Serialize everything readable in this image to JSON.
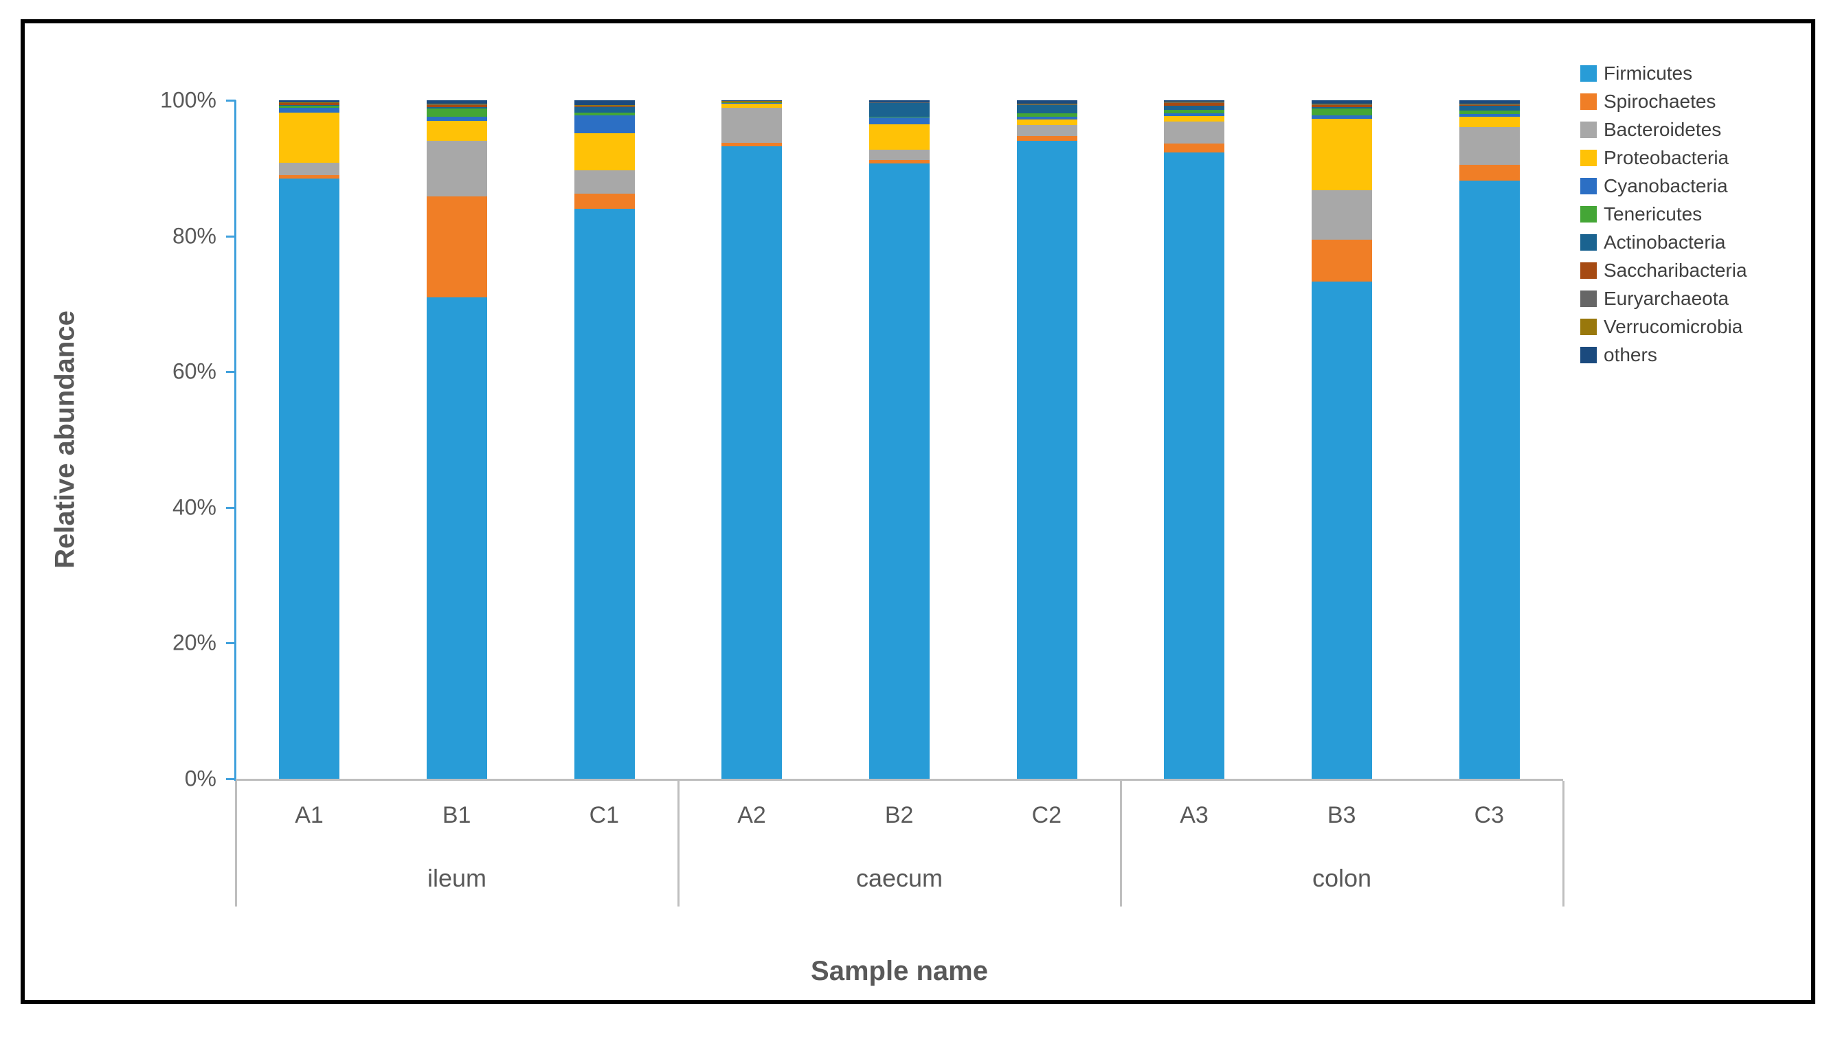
{
  "figure": {
    "x_axis_title": "Sample name",
    "y_axis_title": "Relative abundance"
  },
  "chart_data": {
    "type": "bar",
    "stacked": true,
    "orientation": "vertical",
    "title": "",
    "xlabel": "Sample name",
    "ylabel": "Relative abundance",
    "ylim": [
      0,
      100
    ],
    "y_ticks": [
      "0%",
      "20%",
      "40%",
      "60%",
      "80%",
      "100%"
    ],
    "grid": false,
    "legend_position": "right",
    "categories": [
      "A1",
      "B1",
      "C1",
      "A2",
      "B2",
      "C2",
      "A3",
      "B3",
      "C3"
    ],
    "groups": [
      {
        "label": "ileum",
        "span": 3
      },
      {
        "label": "caecum",
        "span": 3
      },
      {
        "label": "colon",
        "span": 3
      }
    ],
    "axis_colors": {
      "y_axis_line": "#3FA0DC",
      "x_axis_line": "#BFBFBF",
      "tick_label": "#595959"
    },
    "series": [
      {
        "name": "Firmicutes",
        "color": "#289CD7",
        "values": [
          88.5,
          71.0,
          84.0,
          93.2,
          90.7,
          94.0,
          92.3,
          73.3,
          88.2
        ]
      },
      {
        "name": "Spirochaetes",
        "color": "#F07E26",
        "values": [
          0.5,
          14.8,
          2.2,
          0.5,
          0.5,
          0.7,
          1.3,
          6.2,
          2.3
        ]
      },
      {
        "name": "Bacteroidetes",
        "color": "#A8A8A8",
        "values": [
          1.8,
          8.2,
          3.5,
          5.2,
          1.5,
          1.7,
          3.3,
          7.2,
          5.6
        ]
      },
      {
        "name": "Proteobacteria",
        "color": "#FFC206",
        "values": [
          7.4,
          3.0,
          5.4,
          0.6,
          3.8,
          0.8,
          0.8,
          10.6,
          1.5
        ]
      },
      {
        "name": "Cyanobacteria",
        "color": "#2C6FC4",
        "values": [
          0.7,
          0.6,
          2.7,
          0.1,
          1.0,
          0.4,
          0.4,
          0.5,
          0.4
        ]
      },
      {
        "name": "Tenericutes",
        "color": "#44A636",
        "values": [
          0.3,
          1.2,
          0.4,
          0.1,
          0.1,
          0.5,
          0.5,
          1.0,
          0.5
        ]
      },
      {
        "name": "Actinobacteria",
        "color": "#1A6390",
        "values": [
          0.1,
          0.2,
          0.8,
          0.05,
          2.0,
          1.2,
          0.6,
          0.2,
          0.7
        ]
      },
      {
        "name": "Saccharibacteria",
        "color": "#A64A12",
        "values": [
          0.3,
          0.3,
          0.1,
          0.05,
          0.05,
          0.05,
          0.4,
          0.3,
          0.1
        ]
      },
      {
        "name": "Euryarchaeota",
        "color": "#666666",
        "values": [
          0.05,
          0.1,
          0.1,
          0.05,
          0.05,
          0.05,
          0.1,
          0.1,
          0.1
        ]
      },
      {
        "name": "Verrucomicrobia",
        "color": "#99780C",
        "values": [
          0.05,
          0.1,
          0.1,
          0.05,
          0.05,
          0.1,
          0.1,
          0.1,
          0.1
        ]
      },
      {
        "name": "others",
        "color": "#1B4A7E",
        "values": [
          0.3,
          0.5,
          0.7,
          0.1,
          0.25,
          0.5,
          0.2,
          0.5,
          0.5
        ]
      }
    ]
  }
}
